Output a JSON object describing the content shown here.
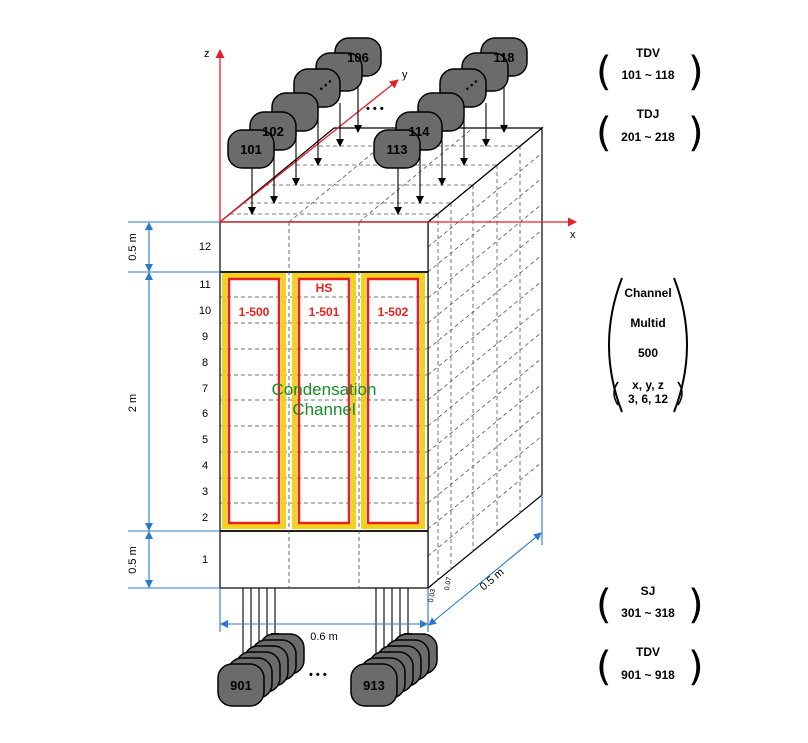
{
  "axes": {
    "x": "x",
    "y": "y",
    "z": "z"
  },
  "dimensions": {
    "top_height": "0.5 m",
    "mid_height": "2 m",
    "bottom_height": "0.5 m",
    "width": "0.6 m",
    "depth": "0.5 m",
    "offset_a": "0.03",
    "offset_b": "0.07"
  },
  "levels": [
    "12",
    "11",
    "10",
    "9",
    "8",
    "7",
    "6",
    "5",
    "4",
    "3",
    "2",
    "1"
  ],
  "heat_structure": {
    "label": "HS",
    "channels": [
      "1-500",
      "1-501",
      "1-502"
    ]
  },
  "channel_label": [
    "Condensation",
    "Channel"
  ],
  "inlet_nodes": {
    "left_front": "101",
    "left_second": "102",
    "left_back": "106",
    "right_front": "113",
    "right_second": "114",
    "right_back": "118",
    "ellipsis": "• • •"
  },
  "outlet_nodes": {
    "left": "901",
    "right": "913",
    "ellipsis": "• • •"
  },
  "legend": {
    "tdv_top": {
      "title": "TDV",
      "range": "101 ~ 118"
    },
    "tdj": {
      "title": "TDJ",
      "range": "201 ~ 218"
    },
    "channel": {
      "line1": "Channel",
      "line2": "Multid",
      "line3": "500",
      "line4": "x, y, z",
      "line5": "3, 6, 12"
    },
    "sj": {
      "title": "SJ",
      "range": "301 ~ 318"
    },
    "tdv_bottom": {
      "title": "TDV",
      "range": "901 ~ 918"
    }
  },
  "colors": {
    "axis": "#e0202a",
    "dimension": "#2a78c8",
    "heat_outer": "#e8201e",
    "heat_inner": "#f4d21a",
    "channel_text": "#1a8a2a",
    "node_fill": "#6b6b6b"
  }
}
